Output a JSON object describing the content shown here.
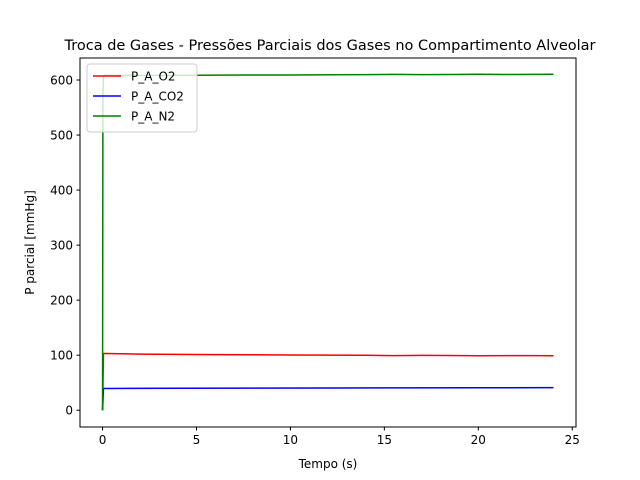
{
  "chart_data": {
    "type": "line",
    "title": "Troca de Gases - Pressões Parciais dos Gases no Compartimento Alveolar",
    "xlabel": "Tempo (s)",
    "ylabel": "P parcial [mmHg]",
    "xlim": [
      -1.2,
      25.2
    ],
    "ylim": [
      -30.5,
      640
    ],
    "xticks": [
      0,
      5,
      10,
      15,
      20,
      25
    ],
    "yticks": [
      0,
      100,
      200,
      300,
      400,
      500,
      600
    ],
    "grid": false,
    "legend_position": "upper-left",
    "series": [
      {
        "name": "P_A_O2",
        "color": "#ff0000",
        "x": [
          0,
          0.05,
          0.1,
          2,
          4,
          6,
          8,
          10,
          12,
          14,
          15.5,
          17,
          18.5,
          20,
          21.5,
          23,
          24
        ],
        "y": [
          0,
          103,
          103,
          102,
          101.5,
          101,
          100.8,
          100.4,
          100.2,
          99.8,
          99.3,
          99.6,
          99.4,
          98.9,
          99.3,
          99.2,
          99
        ]
      },
      {
        "name": "P_A_CO2",
        "color": "#0000ff",
        "x": [
          0,
          0.05,
          0.1,
          4,
          8,
          12,
          16,
          20,
          24
        ],
        "y": [
          0,
          39.5,
          39.5,
          39.8,
          40.1,
          40.4,
          40.6,
          40.8,
          41
        ]
      },
      {
        "name": "P_A_N2",
        "color": "#008000",
        "x": [
          0,
          0.02,
          0.05,
          0.1,
          2,
          4,
          6,
          8,
          10,
          12,
          14,
          15.5,
          17,
          18.5,
          20,
          21.5,
          23,
          24
        ],
        "y": [
          0,
          570,
          608,
          608.5,
          608.3,
          608.5,
          608.8,
          609,
          609.2,
          609.5,
          609.8,
          610.2,
          609.8,
          610.1,
          610.5,
          610,
          610.2,
          610.4
        ]
      }
    ]
  }
}
